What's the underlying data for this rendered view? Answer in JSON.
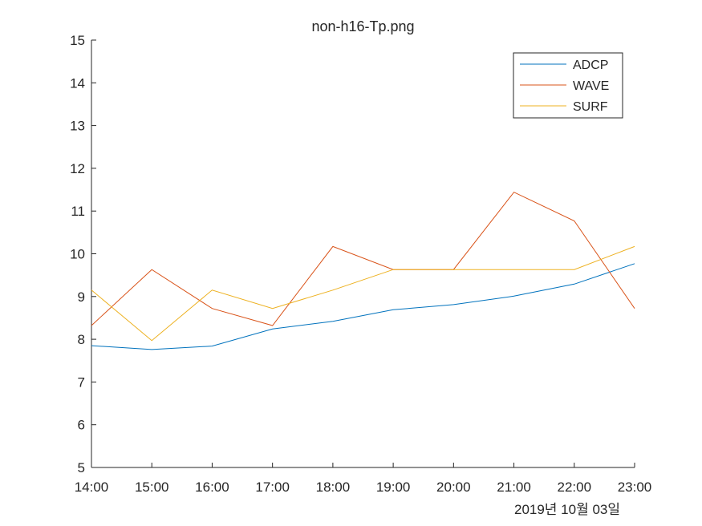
{
  "chart_data": {
    "type": "line",
    "title": "non-h16-Tp.png",
    "xlabel": "",
    "ylabel": "",
    "x": [
      "14:00",
      "15:00",
      "16:00",
      "17:00",
      "18:00",
      "19:00",
      "20:00",
      "21:00",
      "22:00",
      "23:00"
    ],
    "x_date_label": "2019년 10월 03일",
    "ylim": [
      5,
      15
    ],
    "yticks": [
      5,
      6,
      7,
      8,
      9,
      10,
      11,
      12,
      13,
      14,
      15
    ],
    "grid": false,
    "legend_position": "top-right",
    "series": [
      {
        "name": "ADCP",
        "color": "#0072BD",
        "values": [
          7.85,
          7.76,
          7.84,
          8.24,
          8.42,
          8.69,
          8.81,
          9.01,
          9.29,
          9.77
        ]
      },
      {
        "name": "WAVE",
        "color": "#D95319",
        "values": [
          8.32,
          9.63,
          8.72,
          8.32,
          10.17,
          9.63,
          9.63,
          11.44,
          10.77,
          8.72
        ]
      },
      {
        "name": "SURF",
        "color": "#EDB120",
        "values": [
          9.15,
          7.97,
          9.15,
          8.72,
          9.15,
          9.63,
          9.63,
          9.63,
          9.63,
          10.17
        ]
      }
    ]
  }
}
